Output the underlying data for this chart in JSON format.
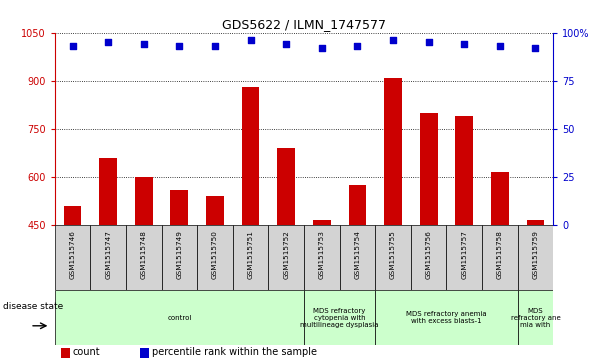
{
  "title": "GDS5622 / ILMN_1747577",
  "samples": [
    "GSM1515746",
    "GSM1515747",
    "GSM1515748",
    "GSM1515749",
    "GSM1515750",
    "GSM1515751",
    "GSM1515752",
    "GSM1515753",
    "GSM1515754",
    "GSM1515755",
    "GSM1515756",
    "GSM1515757",
    "GSM1515758",
    "GSM1515759"
  ],
  "counts": [
    510,
    660,
    600,
    560,
    540,
    880,
    690,
    465,
    575,
    910,
    800,
    790,
    615,
    465
  ],
  "percentile_ranks": [
    93,
    95,
    94,
    93,
    93,
    96,
    94,
    92,
    93,
    96,
    95,
    94,
    93,
    92
  ],
  "ylim_left": [
    450,
    1050
  ],
  "ylim_right": [
    0,
    100
  ],
  "yticks_left": [
    450,
    600,
    750,
    900,
    1050
  ],
  "yticks_right": [
    0,
    25,
    50,
    75,
    100
  ],
  "bar_color": "#cc0000",
  "dot_color": "#0000cc",
  "bg_color": "#d3d3d3",
  "disease_groups": [
    {
      "label": "control",
      "start": 0,
      "end": 7,
      "color": "#ccffcc"
    },
    {
      "label": "MDS refractory\ncytopenia with\nmultilineage dysplasia",
      "start": 7,
      "end": 9,
      "color": "#ccffcc"
    },
    {
      "label": "MDS refractory anemia\nwith excess blasts-1",
      "start": 9,
      "end": 13,
      "color": "#ccffcc"
    },
    {
      "label": "MDS\nrefractory ane\nmia with",
      "start": 13,
      "end": 14,
      "color": "#ccffcc"
    }
  ],
  "legend_count_label": "count",
  "legend_pct_label": "percentile rank within the sample",
  "disease_state_label": "disease state"
}
